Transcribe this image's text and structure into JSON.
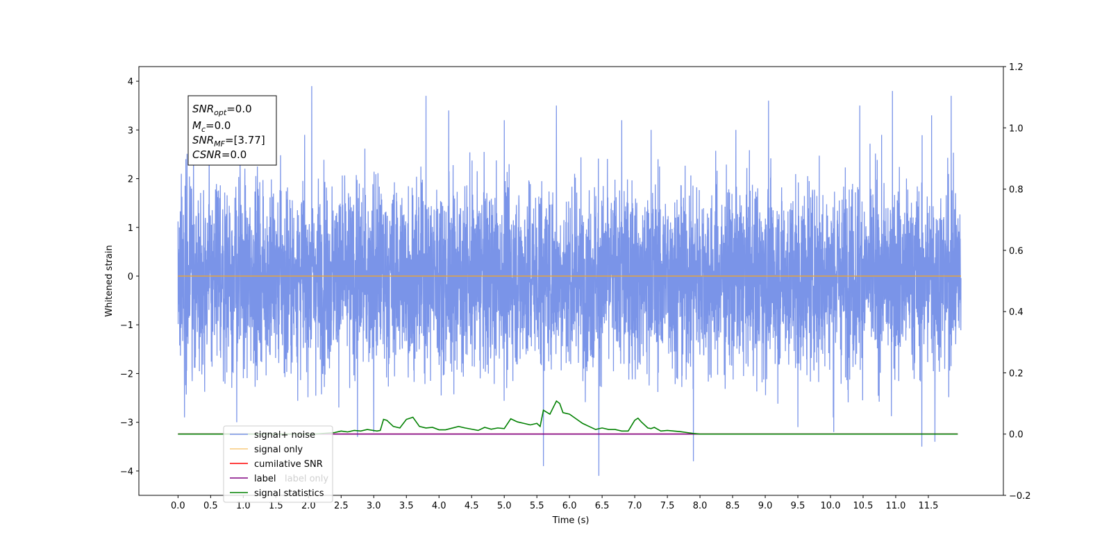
{
  "chart_data": {
    "type": "line",
    "xlabel": "Time (s)",
    "ylabel": "Whitened strain",
    "xlim": [
      -0.6,
      12.65
    ],
    "ylim": [
      -4.5,
      4.3
    ],
    "y2lim": [
      -0.2,
      1.2
    ],
    "xticks": [
      0.0,
      0.5,
      1.0,
      1.5,
      2.0,
      2.5,
      3.0,
      3.5,
      4.0,
      4.5,
      5.0,
      5.5,
      6.0,
      6.5,
      7.0,
      7.5,
      8.0,
      8.5,
      9.0,
      9.5,
      10.0,
      10.5,
      11.0,
      11.5
    ],
    "xtick_labels": [
      "0.0",
      "0.5",
      "1.0",
      "1.5",
      "2.0",
      "2.5",
      "3.0",
      "3.5",
      "4.0",
      "4.5",
      "5.0",
      "5.5",
      "6.0",
      "6.5",
      "7.0",
      "7.5",
      "8.0",
      "8.5",
      "9.0",
      "9.5",
      "10.0",
      "10.5",
      "11.0",
      "11.5"
    ],
    "yticks": [
      4,
      3,
      2,
      1,
      0,
      -1,
      -2,
      -3,
      -4
    ],
    "ytick_labels": [
      "4",
      "3",
      "2",
      "1",
      "0",
      "−1",
      "−2",
      "−3",
      "−4"
    ],
    "y2ticks": [
      1.2,
      1.0,
      0.8,
      0.6,
      0.4,
      0.2,
      0.0,
      -0.2
    ],
    "y2tick_labels": [
      "1.2",
      "1.0",
      "0.8",
      "0.6",
      "0.4",
      "0.2",
      "0.0",
      "−0.2"
    ],
    "grid": false,
    "legend_position": "lower-left",
    "annotation": {
      "snr_opt": {
        "label_base": "SNR",
        "label_sub": "opt",
        "value": "=0.0"
      },
      "mc": {
        "label_base": "M",
        "label_sub": "c",
        "value": "=0.0"
      },
      "snr_mf": {
        "label_base": "SNR",
        "label_sub": "MF",
        "value": "=[3.77]"
      },
      "csnr": {
        "label_base": "CSNR",
        "value": "=0.0"
      }
    },
    "series": [
      {
        "name": "signal+ noise",
        "axis": "left",
        "color": "#7a94e8",
        "description_values": "dense noise between about -2.2 and 2.3, spikes to 3.9 and -4.1",
        "x_range": [
          0.0,
          12.0
        ],
        "noise_std": 0.95,
        "peaks_high": [
          [
            0.05,
            2.1
          ],
          [
            0.12,
            2.4
          ],
          [
            0.95,
            2.5
          ],
          [
            2.05,
            3.9
          ],
          [
            3.8,
            3.7
          ],
          [
            4.15,
            3.4
          ],
          [
            5.0,
            3.2
          ],
          [
            5.8,
            3.5
          ],
          [
            6.8,
            3.2
          ],
          [
            7.25,
            3.0
          ],
          [
            8.55,
            3.0
          ],
          [
            9.05,
            3.6
          ],
          [
            10.45,
            3.5
          ],
          [
            10.95,
            3.8
          ],
          [
            11.55,
            3.3
          ],
          [
            11.85,
            3.7
          ]
        ],
        "peaks_low": [
          [
            0.1,
            -2.9
          ],
          [
            0.9,
            -3.0
          ],
          [
            2.75,
            -3.3
          ],
          [
            3.0,
            -3.2
          ],
          [
            5.6,
            -3.9
          ],
          [
            6.45,
            -4.1
          ],
          [
            7.9,
            -3.8
          ],
          [
            9.5,
            -3.1
          ],
          [
            10.05,
            -3.2
          ],
          [
            11.4,
            -3.5
          ],
          [
            11.6,
            -3.4
          ]
        ]
      },
      {
        "name": "signal only",
        "axis": "left",
        "color": "#f5a623",
        "x": [
          0.0,
          12.0
        ],
        "y": [
          0.0,
          0.0
        ]
      },
      {
        "name": "cumilative SNR",
        "axis": "right",
        "color": "#ff0000",
        "x": [
          0.0,
          11.95
        ],
        "y": [
          0.0,
          0.0
        ]
      },
      {
        "name": "label",
        "axis": "right",
        "color": "#800080",
        "x": [
          0.0,
          11.95
        ],
        "y": [
          0.0,
          0.0
        ]
      },
      {
        "name": "label only",
        "axis": "right",
        "color": "#800080",
        "legend_hidden_text": true
      },
      {
        "name": "signal statistics",
        "axis": "right",
        "color": "#008000",
        "x": [
          0.0,
          2.1,
          2.4,
          2.5,
          2.6,
          2.7,
          2.8,
          2.9,
          3.05,
          3.1,
          3.15,
          3.2,
          3.3,
          3.4,
          3.5,
          3.6,
          3.7,
          3.8,
          3.9,
          4.0,
          4.1,
          4.3,
          4.4,
          4.5,
          4.6,
          4.7,
          4.8,
          4.9,
          5.0,
          5.1,
          5.15,
          5.2,
          5.3,
          5.4,
          5.5,
          5.55,
          5.6,
          5.7,
          5.8,
          5.85,
          5.9,
          6.0,
          6.1,
          6.2,
          6.3,
          6.4,
          6.5,
          6.6,
          6.7,
          6.8,
          6.9,
          7.0,
          7.05,
          7.1,
          7.2,
          7.25,
          7.3,
          7.4,
          7.5,
          7.6,
          7.7,
          7.8,
          7.9,
          8.0,
          8.5,
          9.0,
          9.5,
          10.0,
          11.0,
          11.95
        ],
        "y": [
          0.0,
          0.0,
          0.005,
          0.01,
          0.007,
          0.012,
          0.01,
          0.015,
          0.01,
          0.012,
          0.048,
          0.045,
          0.025,
          0.02,
          0.048,
          0.055,
          0.025,
          0.02,
          0.022,
          0.014,
          0.014,
          0.025,
          0.02,
          0.016,
          0.012,
          0.022,
          0.016,
          0.02,
          0.018,
          0.05,
          0.045,
          0.04,
          0.035,
          0.03,
          0.035,
          0.025,
          0.078,
          0.065,
          0.108,
          0.1,
          0.07,
          0.065,
          0.05,
          0.035,
          0.025,
          0.015,
          0.02,
          0.015,
          0.015,
          0.01,
          0.01,
          0.045,
          0.052,
          0.04,
          0.02,
          0.018,
          0.022,
          0.01,
          0.012,
          0.01,
          0.008,
          0.005,
          0.002,
          0.0,
          0.0,
          0.0,
          0.0,
          0.0,
          0.0,
          0.0
        ]
      }
    ]
  }
}
